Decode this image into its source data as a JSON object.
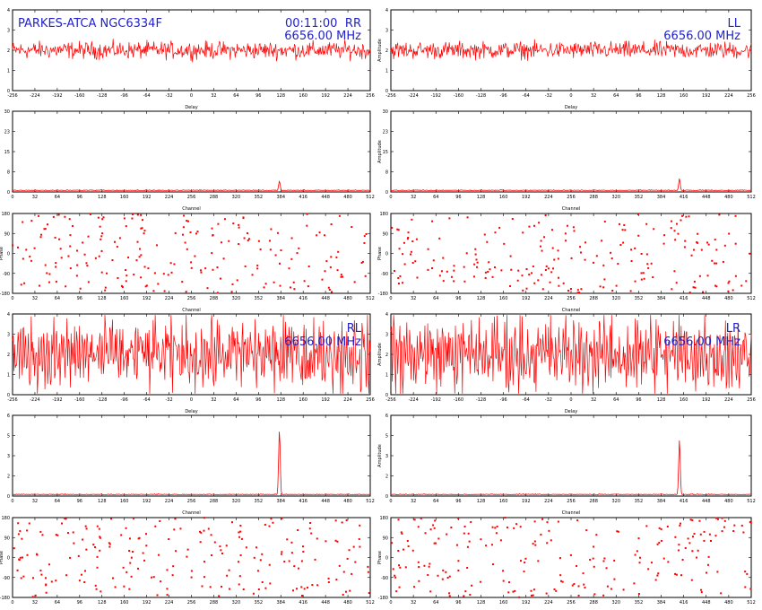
{
  "header": {
    "source": "PARKES-ATCA NGC6334F",
    "time": "00:11:00",
    "freq": "6656.00 MHz"
  },
  "colors": {
    "trace": "#ff0000",
    "annotation": "#2222cc",
    "axis": "#000000"
  },
  "labels": {
    "delay": "Delay",
    "channel": "Channel",
    "amplitude": "Amplitude",
    "phase": "Phase"
  },
  "chart_data": [
    {
      "type": "line",
      "product": "RR",
      "panel": "delay",
      "xlabel": "Delay",
      "ylabel": "",
      "xlim": [
        -256,
        256
      ],
      "ylim": [
        0,
        4
      ],
      "noise_level": 2.0,
      "noise_spread": 0.6
    },
    {
      "type": "line",
      "product": "LL",
      "panel": "delay",
      "xlabel": "Delay",
      "ylabel": "Amplitude",
      "xlim": [
        -256,
        256
      ],
      "ylim": [
        0,
        4
      ],
      "noise_level": 2.0,
      "noise_spread": 0.6
    },
    {
      "type": "line",
      "product": "RR",
      "panel": "amplitude",
      "xlabel": "Channel",
      "ylabel": "",
      "xlim": [
        0,
        512
      ],
      "ylim": [
        0,
        30
      ],
      "baseline": 0.5,
      "peak_channel": 382,
      "peak_value": 4
    },
    {
      "type": "line",
      "product": "LL",
      "panel": "amplitude",
      "xlabel": "Channel",
      "ylabel": "Amplitude",
      "xlim": [
        0,
        512
      ],
      "ylim": [
        0,
        30
      ],
      "baseline": 0.5,
      "peak_channel": 410,
      "peak_value": 5
    },
    {
      "type": "scatter",
      "product": "RR",
      "panel": "phase",
      "xlabel": "Channel",
      "ylabel": "Phase",
      "xlim": [
        0,
        512
      ],
      "ylim": [
        -180,
        180
      ],
      "points": 210
    },
    {
      "type": "scatter",
      "product": "LL",
      "panel": "phase",
      "xlabel": "Channel",
      "ylabel": "Phase",
      "xlim": [
        0,
        512
      ],
      "ylim": [
        -180,
        180
      ],
      "points": 210
    },
    {
      "type": "line",
      "product": "RL",
      "panel": "delay",
      "xlabel": "Delay",
      "ylabel": "",
      "xlim": [
        -256,
        256
      ],
      "ylim": [
        0,
        4
      ],
      "noise_level": 2.0,
      "noise_spread": 2.2
    },
    {
      "type": "line",
      "product": "LR",
      "panel": "delay",
      "xlabel": "Delay",
      "ylabel": "Amplitude",
      "xlim": [
        -256,
        256
      ],
      "ylim": [
        0,
        4
      ],
      "noise_level": 2.0,
      "noise_spread": 2.2
    },
    {
      "type": "line",
      "product": "RL",
      "panel": "amplitude",
      "xlabel": "Channel",
      "ylabel": "",
      "xlim": [
        0,
        512
      ],
      "ylim": [
        0,
        6
      ],
      "baseline": 0.1,
      "peak_channel": 382,
      "peak_value": 4.9
    },
    {
      "type": "line",
      "product": "LR",
      "panel": "amplitude",
      "xlabel": "Channel",
      "ylabel": "Amplitude",
      "xlim": [
        0,
        512
      ],
      "ylim": [
        0,
        6
      ],
      "baseline": 0.1,
      "peak_channel": 410,
      "peak_value": 4.2
    },
    {
      "type": "scatter",
      "product": "RL",
      "panel": "phase",
      "xlabel": "Channel",
      "ylabel": "Phase",
      "xlim": [
        0,
        512
      ],
      "ylim": [
        -180,
        180
      ],
      "points": 210
    },
    {
      "type": "scatter",
      "product": "LR",
      "panel": "phase",
      "xlabel": "Channel",
      "ylabel": "Phase",
      "xlim": [
        0,
        512
      ],
      "ylim": [
        -180,
        180
      ],
      "points": 210
    }
  ]
}
